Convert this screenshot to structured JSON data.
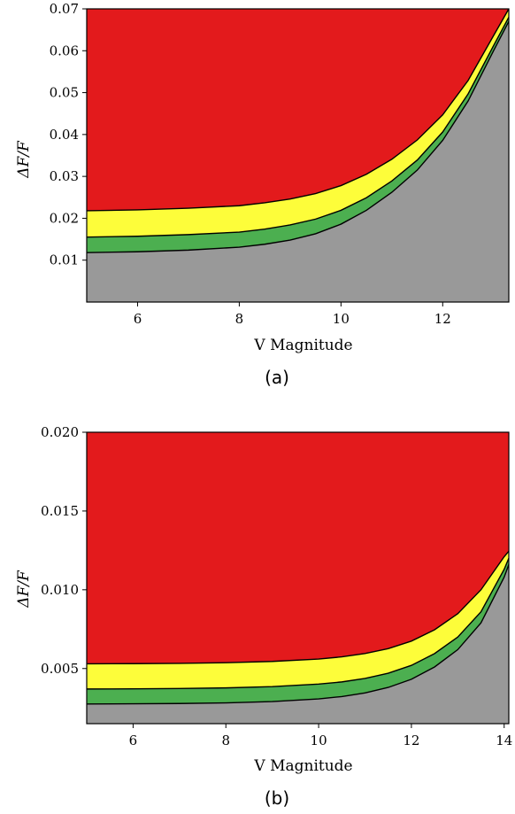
{
  "chart_data": [
    {
      "type": "area",
      "panel_label": "(a)",
      "xlabel": "V Magnitude",
      "ylabel": "ΔF/F",
      "xlim": [
        5.0,
        13.3
      ],
      "ylim": [
        0.0,
        0.07
      ],
      "xticks": [
        "6",
        "8",
        "10",
        "12"
      ],
      "xtick_values": [
        6,
        8,
        10,
        12
      ],
      "yticks": [
        "0.01",
        "0.02",
        "0.03",
        "0.04",
        "0.05",
        "0.06",
        "0.07"
      ],
      "ytick_values": [
        0.01,
        0.02,
        0.03,
        0.04,
        0.05,
        0.06,
        0.07
      ],
      "grid": false,
      "x": [
        5.0,
        6.0,
        7.0,
        8.0,
        8.5,
        9.0,
        9.5,
        10.0,
        10.5,
        11.0,
        11.5,
        12.0,
        12.5,
        13.0,
        13.3
      ],
      "series": [
        {
          "color": "#999999",
          "values": [
            0.0118,
            0.012,
            0.0124,
            0.0131,
            0.0138,
            0.0148,
            0.0163,
            0.0186,
            0.0219,
            0.0262,
            0.0315,
            0.0386,
            0.048,
            0.06,
            0.067
          ]
        },
        {
          "color": "#4caf50",
          "values": [
            0.0155,
            0.0157,
            0.0161,
            0.0167,
            0.0174,
            0.0184,
            0.0198,
            0.0219,
            0.0249,
            0.0289,
            0.0339,
            0.0406,
            0.0497,
            0.0612,
            0.068
          ]
        },
        {
          "color": "#fdfd3a",
          "values": [
            0.0218,
            0.022,
            0.0224,
            0.023,
            0.0237,
            0.0246,
            0.0259,
            0.0278,
            0.0305,
            0.0341,
            0.0387,
            0.0447,
            0.0529,
            0.0636,
            0.0702
          ]
        },
        {
          "color": "#e31a1c",
          "values": [
            0.07,
            0.07,
            0.07,
            0.07,
            0.07,
            0.07,
            0.07,
            0.07,
            0.07,
            0.07,
            0.07,
            0.07,
            0.07,
            0.07,
            0.07
          ]
        }
      ]
    },
    {
      "type": "area",
      "panel_label": "(b)",
      "xlabel": "V Magnitude",
      "ylabel": "ΔF/F",
      "xlim": [
        5.0,
        14.1
      ],
      "ylim": [
        0.0015,
        0.02
      ],
      "xticks": [
        "6",
        "8",
        "10",
        "12",
        "14"
      ],
      "xtick_values": [
        6,
        8,
        10,
        12,
        14
      ],
      "yticks": [
        "0.005",
        "0.010",
        "0.015",
        "0.020"
      ],
      "ytick_values": [
        0.005,
        0.01,
        0.015,
        0.02
      ],
      "grid": false,
      "x": [
        5.0,
        6.0,
        7.0,
        8.0,
        9.0,
        10.0,
        10.5,
        11.0,
        11.5,
        12.0,
        12.5,
        13.0,
        13.5,
        14.0,
        14.1
      ],
      "series": [
        {
          "color": "#999999",
          "values": [
            0.00275,
            0.00276,
            0.00278,
            0.00282,
            0.0029,
            0.00307,
            0.00322,
            0.00345,
            0.0038,
            0.00432,
            0.0051,
            0.0062,
            0.0079,
            0.0108,
            0.0116
          ]
        },
        {
          "color": "#4caf50",
          "values": [
            0.0037,
            0.00371,
            0.00373,
            0.00377,
            0.00385,
            0.00401,
            0.00415,
            0.00437,
            0.0047,
            0.0052,
            0.00595,
            0.007,
            0.0086,
            0.0113,
            0.012
          ]
        },
        {
          "color": "#fdfd3a",
          "values": [
            0.0053,
            0.00531,
            0.00533,
            0.00537,
            0.00545,
            0.0056,
            0.00574,
            0.00595,
            0.00626,
            0.00674,
            0.00746,
            0.00848,
            0.01,
            0.0121,
            0.01245
          ]
        },
        {
          "color": "#e31a1c",
          "values": [
            0.02,
            0.02,
            0.02,
            0.02,
            0.02,
            0.02,
            0.02,
            0.02,
            0.02,
            0.02,
            0.02,
            0.02,
            0.02,
            0.02,
            0.02
          ]
        }
      ]
    }
  ]
}
